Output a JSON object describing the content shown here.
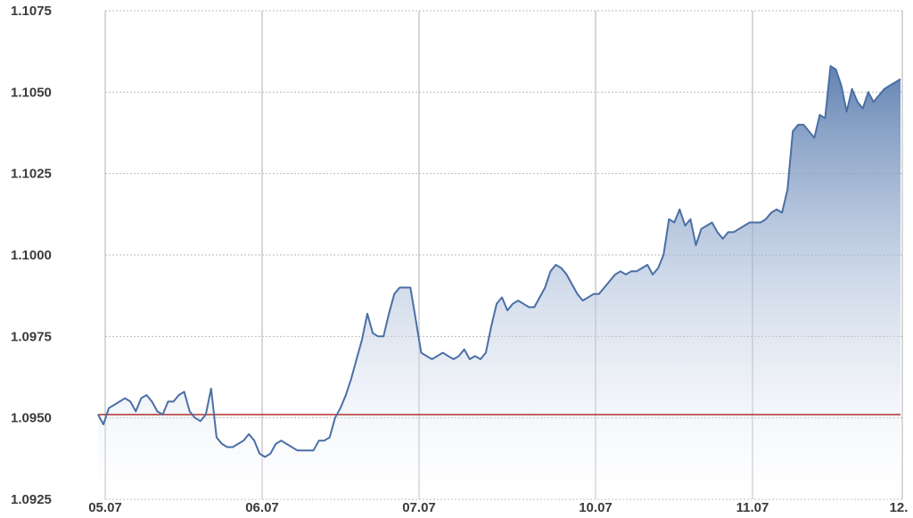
{
  "chart_data": {
    "type": "area",
    "title": "",
    "xlabel": "",
    "ylabel": "",
    "x_tick_labels": [
      "05.07",
      "06.07",
      "07.07",
      "10.07",
      "11.07",
      "12."
    ],
    "y_tick_labels": [
      "1.1075",
      "1.1050",
      "1.1025",
      "1.1000",
      "1.0975",
      "1.0950",
      "1.0925"
    ],
    "ylim": [
      1.0925,
      1.1075
    ],
    "grid": true,
    "reference_line": 1.0951,
    "series": [
      {
        "values": [
          1.0951,
          1.0948,
          1.0953,
          1.0954,
          1.0955,
          1.0956,
          1.0955,
          1.0952,
          1.0956,
          1.0957,
          1.0955,
          1.0952,
          1.0951,
          1.0955,
          1.0955,
          1.0957,
          1.0958,
          1.0952,
          1.095,
          1.0949,
          1.0951,
          1.0959,
          1.0944,
          1.0942,
          1.0941,
          1.0941,
          1.0942,
          1.0943,
          1.0945,
          1.0943,
          1.0939,
          1.0938,
          1.0939,
          1.0942,
          1.0943,
          1.0942,
          1.0941,
          1.094,
          1.094,
          1.094,
          1.094,
          1.0943,
          1.0943,
          1.0944,
          1.095,
          1.0953,
          1.0957,
          1.0962,
          1.0968,
          1.0974,
          1.0982,
          1.0976,
          1.0975,
          1.0975,
          1.0982,
          1.0988,
          1.099,
          1.099,
          1.099,
          1.098,
          1.097,
          1.0969,
          1.0968,
          1.0969,
          1.097,
          1.0969,
          1.0968,
          1.0969,
          1.0971,
          1.0968,
          1.0969,
          1.0968,
          1.097,
          1.0978,
          1.0985,
          1.0987,
          1.0983,
          1.0985,
          1.0986,
          1.0985,
          1.0984,
          1.0984,
          1.0987,
          1.099,
          1.0995,
          1.0997,
          1.0996,
          1.0994,
          1.0991,
          1.0988,
          1.0986,
          1.0987,
          1.0988,
          1.0988,
          1.099,
          1.0992,
          1.0994,
          1.0995,
          1.0994,
          1.0995,
          1.0995,
          1.0996,
          1.0997,
          1.0994,
          1.0996,
          1.1,
          1.1011,
          1.101,
          1.1014,
          1.1009,
          1.1011,
          1.1003,
          1.1008,
          1.1009,
          1.101,
          1.1007,
          1.1005,
          1.1007,
          1.1007,
          1.1008,
          1.1009,
          1.101,
          1.101,
          1.101,
          1.1011,
          1.1013,
          1.1014,
          1.1013,
          1.102,
          1.1038,
          1.104,
          1.104,
          1.1038,
          1.1036,
          1.1043,
          1.1042,
          1.1058,
          1.1057,
          1.1052,
          1.1044,
          1.1051,
          1.1047,
          1.1045,
          1.105,
          1.1047,
          1.1049,
          1.1051,
          1.1052,
          1.1053,
          1.1054
        ]
      }
    ]
  },
  "colors": {
    "line": "#4a6fa5",
    "fill_top": "#5a7cae",
    "fill_bottom": "#ffffff",
    "reference_line": "#b0302d",
    "grid_vertical": "#cccccc",
    "grid_horizontal": "#bbbbbb",
    "axis_text": "#3b3b3b"
  }
}
